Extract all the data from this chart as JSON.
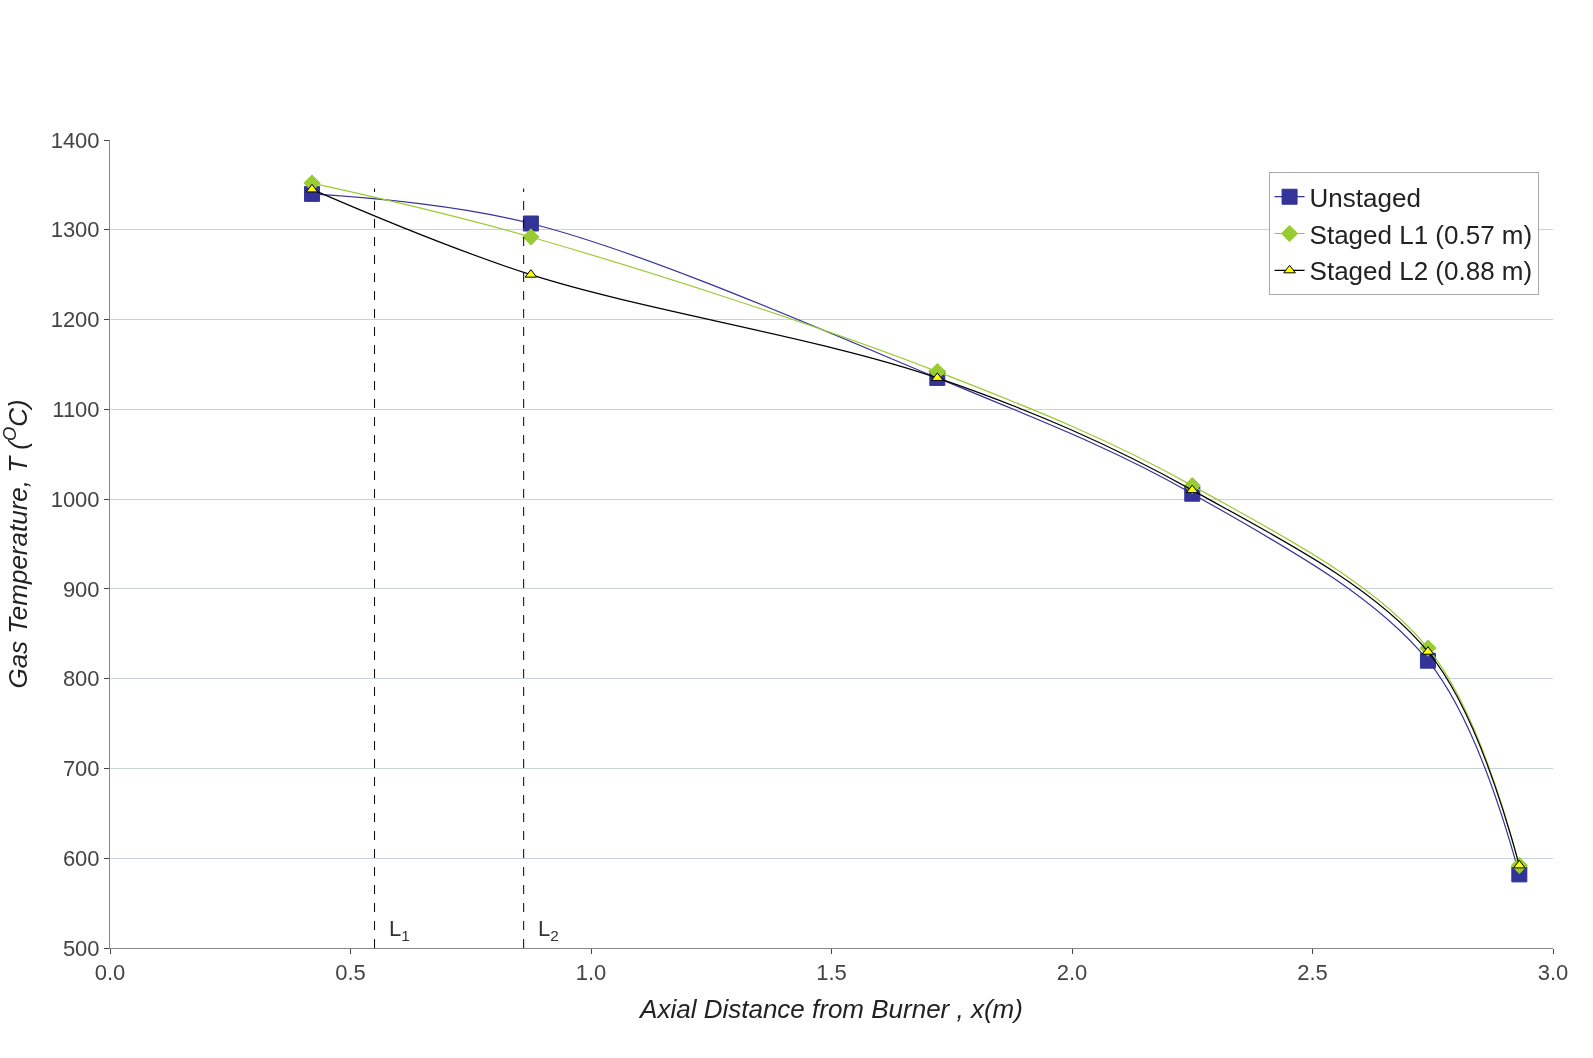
{
  "chart_data": {
    "type": "line",
    "xlabel": "Axial Distance from Burner , x(m)",
    "ylabel": "Gas Temperature, T ($^{O}$C)",
    "xlim": [
      0,
      3.0
    ],
    "xticks": [
      {
        "value": 0,
        "label": "0.0"
      },
      0.5,
      {
        "value": 1,
        "label": "1.0"
      },
      1.5,
      {
        "value": 2,
        "label": "2.0"
      },
      2.5,
      {
        "value": 3,
        "label": "3.0"
      }
    ],
    "ylim": [
      500,
      1400
    ],
    "yticks": [
      500,
      600,
      700,
      800,
      900,
      1000,
      1100,
      1200,
      1300,
      1400
    ],
    "grid": "y",
    "legend": "top right",
    "series": [
      {
        "name": "Unstaged",
        "color": "#333399",
        "marker": "square",
        "x": [
          0.42,
          0.875,
          1.72,
          2.25,
          2.74,
          2.93
        ],
        "values": [
          1340,
          1307,
          1135,
          1006,
          820,
          582
        ]
      },
      {
        "name": "Staged L1 (0.57 m)",
        "color": "#99cc33",
        "marker": "diamond",
        "x": [
          0.42,
          0.875,
          1.72,
          2.25,
          2.74,
          2.93
        ],
        "values": [
          1352,
          1292,
          1142,
          1015,
          834,
          592
        ]
      },
      {
        "name": "Staged L2 (0.88 m)",
        "color": "#000000",
        "colors": [
          "#ffff00",
          "#ffff00",
          "#ffff00",
          "#ffff00",
          "#ffff00",
          "#ffff00"
        ],
        "marker": "triangle",
        "x": [
          0.42,
          0.875,
          1.72,
          2.25,
          2.74,
          2.93
        ],
        "values": [
          1345,
          1250,
          1135,
          1010,
          830,
          592
        ]
      }
    ],
    "ref_lines": [
      {
        "axis": "x",
        "value": 0.55,
        "label": "L$_{1}$",
        "color": "#000000",
        "line_style": "dashed"
      },
      {
        "axis": "x",
        "value": 0.86,
        "label": "L$_{2}$",
        "color": "#000000",
        "line_style": "dashed"
      }
    ]
  }
}
